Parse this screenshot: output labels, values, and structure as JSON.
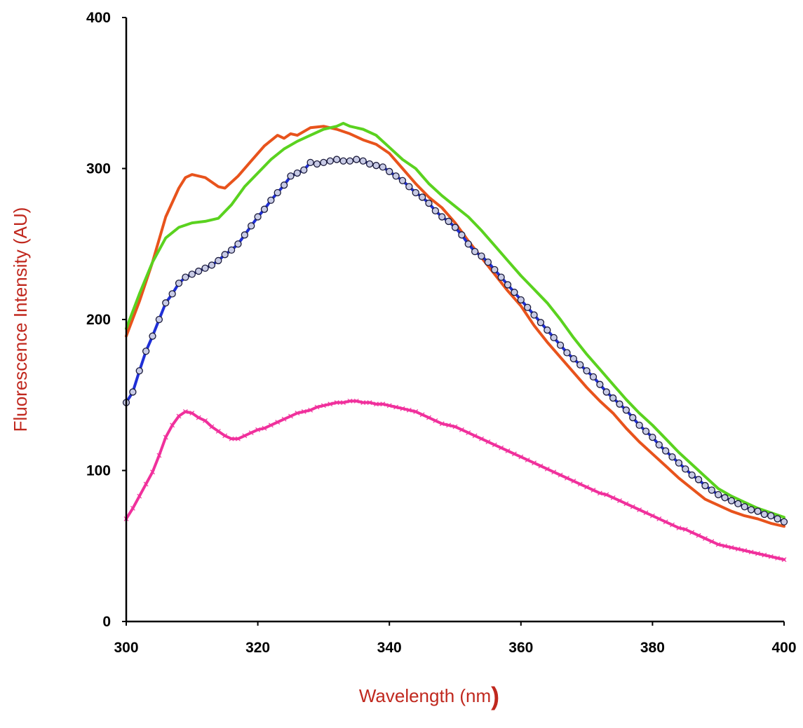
{
  "chart_data": {
    "type": "line",
    "title": "",
    "xlabel": "Wavelength (nm",
    "xlabel_suffix": ")",
    "ylabel": "Fluorescence Intensity (AU)",
    "xlim": [
      300,
      400
    ],
    "ylim": [
      0,
      400
    ],
    "xticks": [
      300,
      320,
      340,
      360,
      380,
      400
    ],
    "yticks": [
      0,
      100,
      200,
      300,
      400
    ],
    "grid": false,
    "legend": "none",
    "colors": {
      "axis_title": "#c0281e",
      "orange": "#e8531c",
      "green": "#5ad21f",
      "blue": "#1f2fd6",
      "magenta": "#f0309c"
    },
    "series": [
      {
        "color": "#e8531c",
        "marker": "none",
        "x": [
          300,
          302,
          304,
          306,
          308,
          309,
          310,
          312,
          314,
          315,
          317,
          319,
          321,
          323,
          324,
          325,
          326,
          328,
          330,
          332,
          334,
          336,
          338,
          340,
          342,
          344,
          346,
          348,
          350,
          352,
          354,
          356,
          358,
          360,
          362,
          364,
          366,
          368,
          370,
          372,
          374,
          376,
          378,
          380,
          382,
          384,
          386,
          388,
          390,
          392,
          394,
          396,
          398,
          400
        ],
        "y": [
          189,
          212,
          238,
          268,
          287,
          294,
          296,
          294,
          288,
          287,
          295,
          305,
          315,
          322,
          320,
          323,
          322,
          327,
          328,
          326,
          323,
          319,
          316,
          310,
          300,
          290,
          281,
          274,
          264,
          252,
          241,
          230,
          219,
          209,
          196,
          185,
          175,
          165,
          155,
          146,
          138,
          128,
          119,
          111,
          103,
          95,
          88,
          81,
          77,
          73,
          70,
          68,
          65,
          63
        ]
      },
      {
        "color": "#5ad21f",
        "marker": "none",
        "x": [
          300,
          302,
          304,
          306,
          308,
          310,
          312,
          314,
          316,
          318,
          320,
          322,
          324,
          326,
          328,
          330,
          332,
          333,
          334,
          336,
          338,
          340,
          342,
          344,
          346,
          348,
          350,
          352,
          354,
          356,
          358,
          360,
          362,
          364,
          366,
          368,
          370,
          372,
          374,
          376,
          378,
          380,
          382,
          384,
          386,
          388,
          390,
          392,
          394,
          396,
          398,
          400
        ],
        "y": [
          194,
          217,
          238,
          254,
          261,
          264,
          265,
          267,
          276,
          288,
          297,
          306,
          313,
          318,
          322,
          326,
          328,
          330,
          328,
          326,
          322,
          314,
          306,
          300,
          290,
          282,
          275,
          268,
          259,
          249,
          239,
          229,
          220,
          211,
          200,
          188,
          177,
          167,
          157,
          147,
          138,
          130,
          121,
          112,
          104,
          96,
          88,
          83,
          79,
          75,
          72,
          69
        ]
      },
      {
        "color": "#1f2fd6",
        "marker": "circle",
        "x": [
          300,
          301,
          302,
          303,
          304,
          305,
          306,
          307,
          308,
          309,
          310,
          311,
          312,
          313,
          314,
          315,
          316,
          317,
          318,
          319,
          320,
          321,
          322,
          323,
          324,
          325,
          326,
          327,
          328,
          329,
          330,
          331,
          332,
          333,
          334,
          335,
          336,
          337,
          338,
          339,
          340,
          341,
          342,
          343,
          344,
          345,
          346,
          347,
          348,
          349,
          350,
          351,
          352,
          353,
          354,
          355,
          356,
          357,
          358,
          359,
          360,
          361,
          362,
          363,
          364,
          365,
          366,
          367,
          368,
          369,
          370,
          371,
          372,
          373,
          374,
          375,
          376,
          377,
          378,
          379,
          380,
          381,
          382,
          383,
          384,
          385,
          386,
          387,
          388,
          389,
          390,
          391,
          392,
          393,
          394,
          395,
          396,
          397,
          398,
          399,
          400
        ],
        "y": [
          145,
          152,
          166,
          179,
          189,
          200,
          211,
          217,
          224,
          228,
          230,
          232,
          234,
          236,
          239,
          243,
          246,
          250,
          256,
          262,
          268,
          273,
          279,
          284,
          289,
          295,
          297,
          299,
          304,
          303,
          304,
          305,
          306,
          305,
          305,
          306,
          305,
          303,
          302,
          301,
          298,
          295,
          292,
          288,
          284,
          281,
          277,
          272,
          268,
          265,
          261,
          256,
          250,
          245,
          242,
          238,
          233,
          228,
          223,
          218,
          213,
          208,
          203,
          198,
          193,
          188,
          183,
          178,
          174,
          170,
          166,
          162,
          157,
          152,
          148,
          144,
          140,
          135,
          130,
          126,
          122,
          117,
          113,
          109,
          105,
          101,
          97,
          94,
          90,
          87,
          84,
          82,
          80,
          78,
          76,
          74,
          73,
          71,
          70,
          68,
          66
        ]
      },
      {
        "color": "#f0309c",
        "marker": "cross",
        "x": [
          300,
          301,
          302,
          303,
          304,
          305,
          306,
          307,
          308,
          309,
          310,
          311,
          312,
          313,
          314,
          315,
          316,
          317,
          318,
          319,
          320,
          321,
          322,
          323,
          324,
          325,
          326,
          327,
          328,
          329,
          330,
          331,
          332,
          333,
          334,
          335,
          336,
          337,
          338,
          339,
          340,
          341,
          342,
          343,
          344,
          345,
          346,
          347,
          348,
          349,
          350,
          351,
          352,
          353,
          354,
          355,
          356,
          357,
          358,
          359,
          360,
          361,
          362,
          363,
          364,
          365,
          366,
          367,
          368,
          369,
          370,
          371,
          372,
          373,
          374,
          375,
          376,
          377,
          378,
          379,
          380,
          381,
          382,
          383,
          384,
          385,
          386,
          387,
          388,
          389,
          390,
          391,
          392,
          393,
          394,
          395,
          396,
          397,
          398,
          399,
          400
        ],
        "y": [
          68,
          75,
          83,
          91,
          99,
          110,
          122,
          130,
          136,
          139,
          138,
          135,
          133,
          129,
          126,
          123,
          121,
          121,
          123,
          125,
          127,
          128,
          130,
          132,
          134,
          136,
          138,
          139,
          140,
          142,
          143,
          144,
          145,
          145,
          146,
          146,
          145,
          145,
          144,
          144,
          143,
          142,
          141,
          140,
          139,
          137,
          135,
          133,
          131,
          130,
          129,
          127,
          125,
          123,
          121,
          119,
          117,
          115,
          113,
          111,
          109,
          107,
          105,
          103,
          101,
          99,
          97,
          95,
          93,
          91,
          89,
          87,
          85,
          84,
          82,
          80,
          78,
          76,
          74,
          72,
          70,
          68,
          66,
          64,
          62,
          61,
          59,
          57,
          55,
          53,
          51,
          50,
          49,
          48,
          47,
          46,
          45,
          44,
          43,
          42,
          41
        ]
      }
    ]
  }
}
